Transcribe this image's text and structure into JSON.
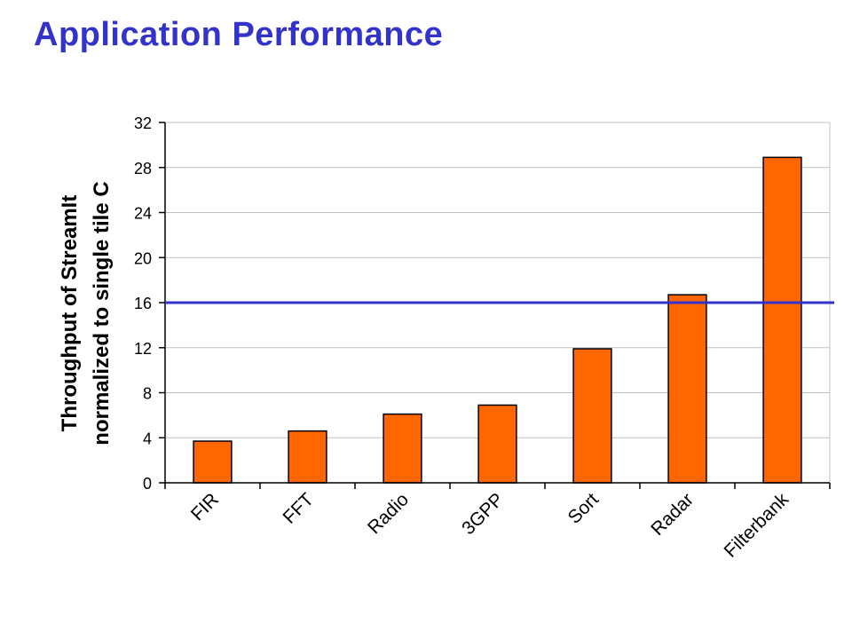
{
  "page": {
    "title": "Application Performance"
  },
  "colors": {
    "title": "#3333cc",
    "bar": "#ff6600",
    "bar_stroke": "#000000",
    "grid": "#c0c0c0",
    "reference_line": "#3333cc"
  },
  "chart_data": {
    "type": "bar",
    "categories": [
      "FIR",
      "FFT",
      "Radio",
      "3GPP",
      "Sort",
      "Radar",
      "Filterbank"
    ],
    "values": [
      3.7,
      4.6,
      6.1,
      6.9,
      11.9,
      16.7,
      28.9
    ],
    "ylabel_lines": [
      "Throughput of StreamIt",
      "normalized to single tile C"
    ],
    "ylim": [
      0,
      32
    ],
    "yticks": [
      0,
      4,
      8,
      12,
      16,
      20,
      24,
      28,
      32
    ],
    "reference_line": 16,
    "grid": true,
    "legend": "none"
  }
}
